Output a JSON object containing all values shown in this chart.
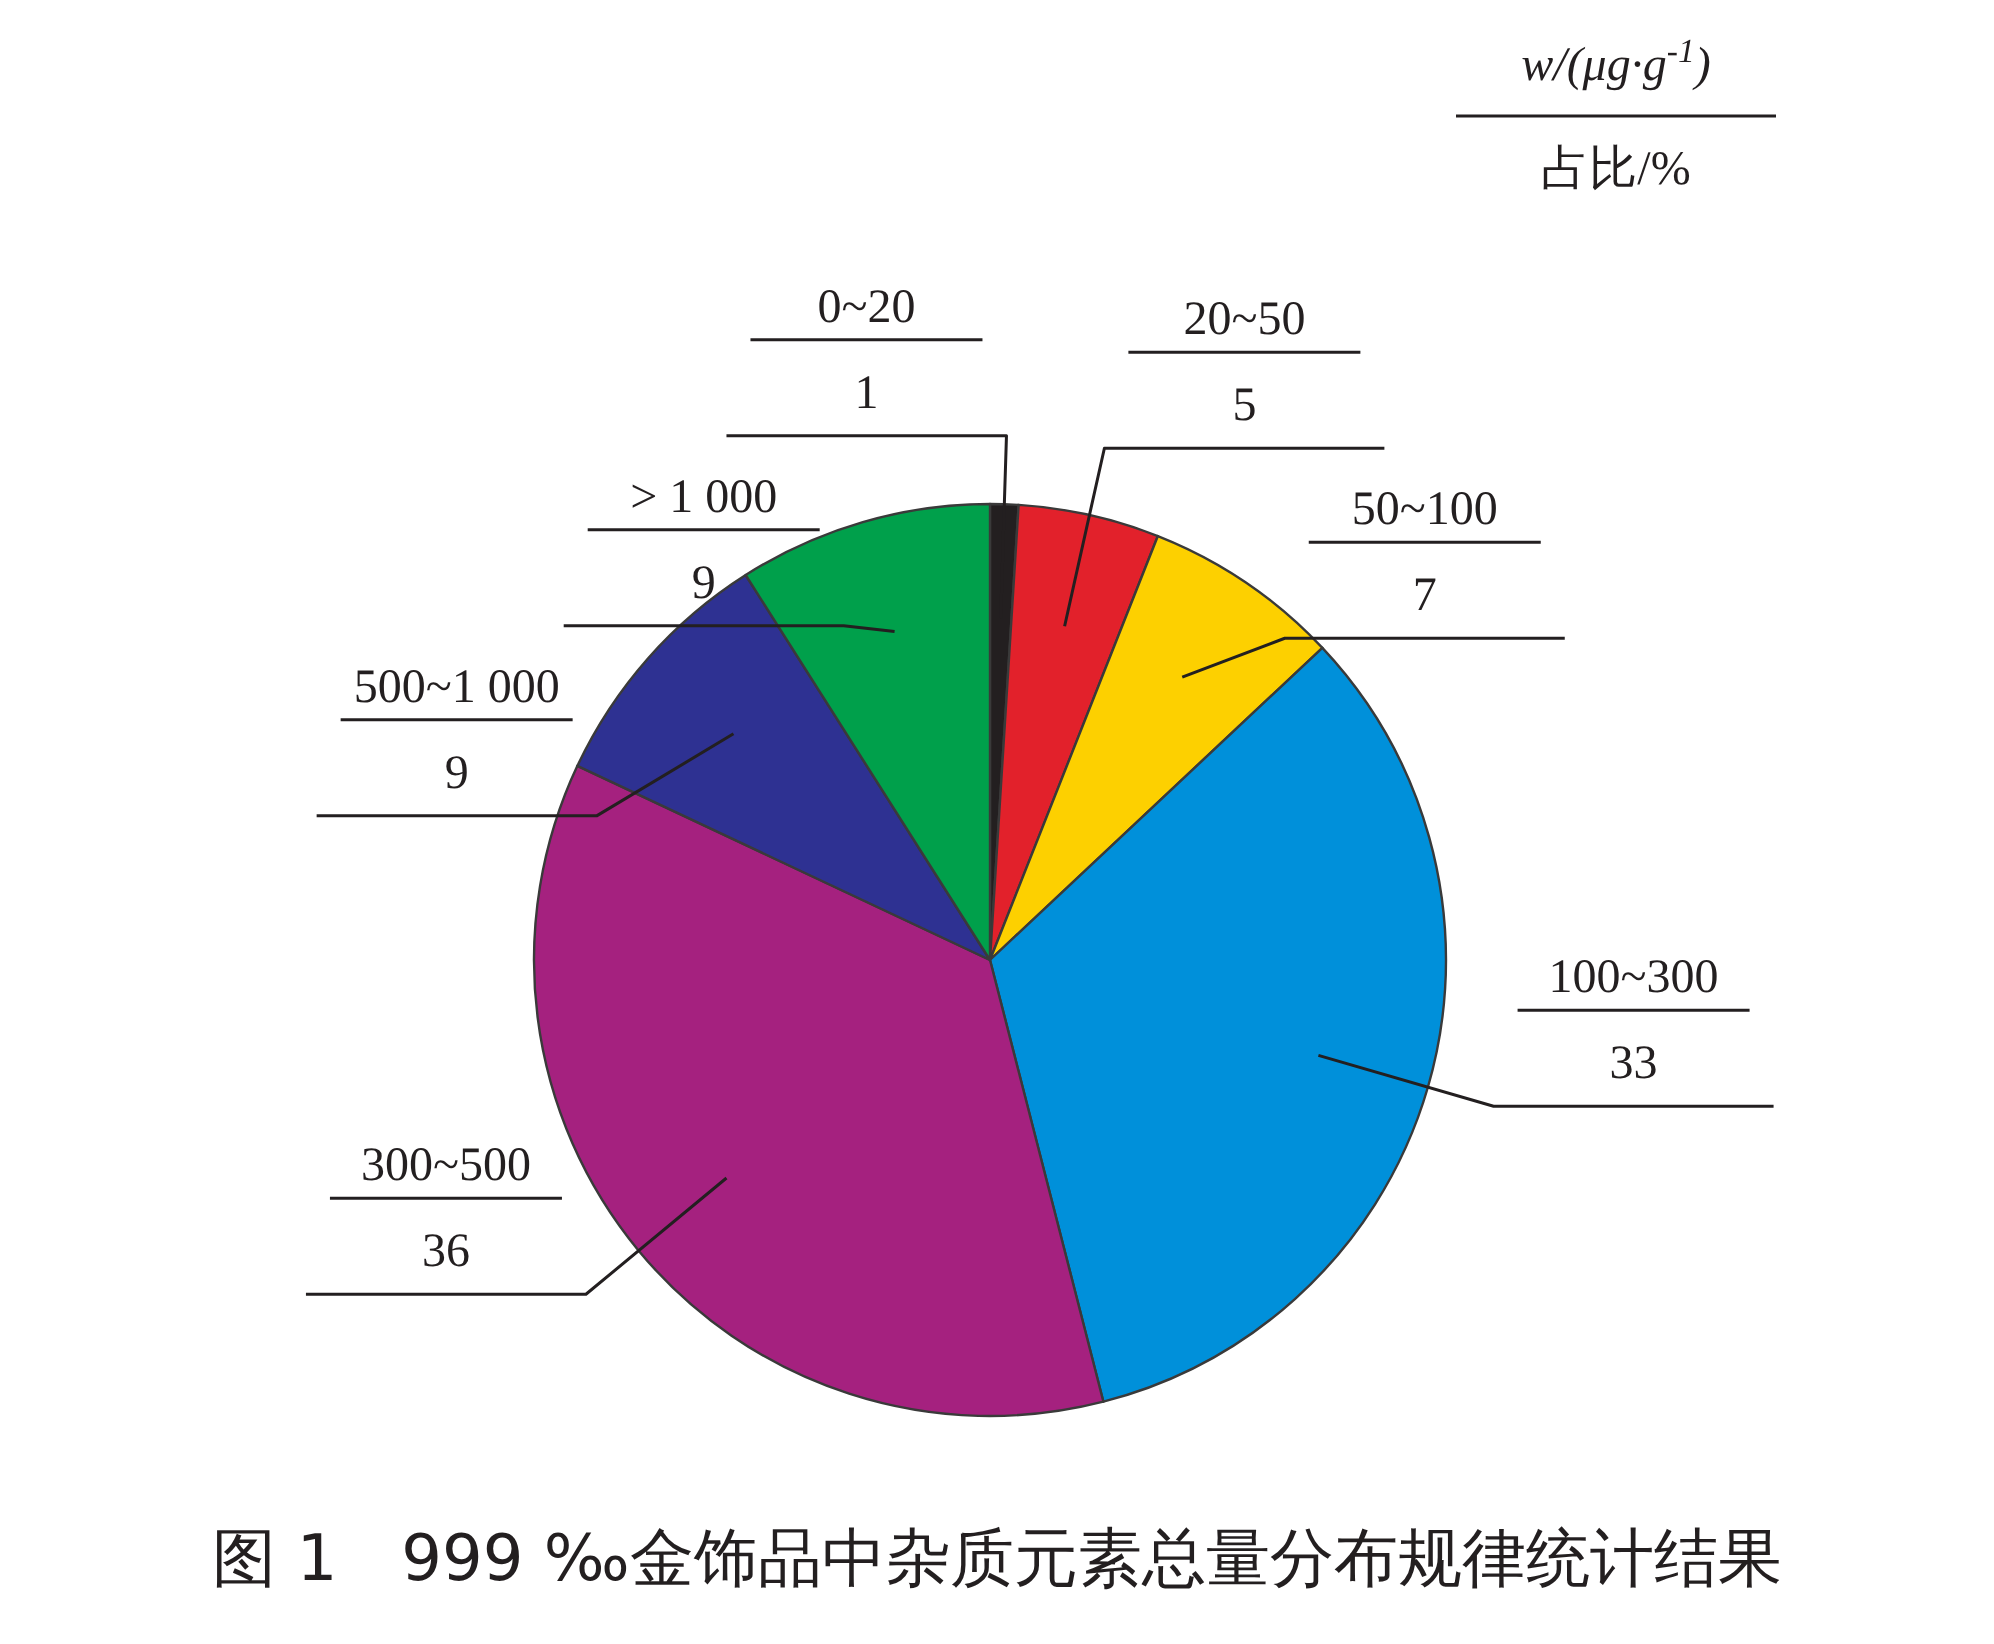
{
  "chart_data": {
    "type": "pie",
    "title": "图 1　999 ‰金饰品中杂质元素总量分布规律统计结果",
    "legend_title": "w/(μg·g$^{-1}$)",
    "clabel": "占比/%",
    "categories": [
      "0~20",
      "20~50",
      "50~100",
      "100~300",
      "300~500",
      "500~1 000",
      "> 1 000"
    ],
    "values": [
      1,
      5,
      7,
      33,
      36,
      9,
      9
    ],
    "colors": [
      "#231f20",
      "#e2212b",
      "#fdd000",
      "#0090da",
      "#a5217f",
      "#2e3192",
      "#00a04b"
    ],
    "data_labels": true
  }
}
